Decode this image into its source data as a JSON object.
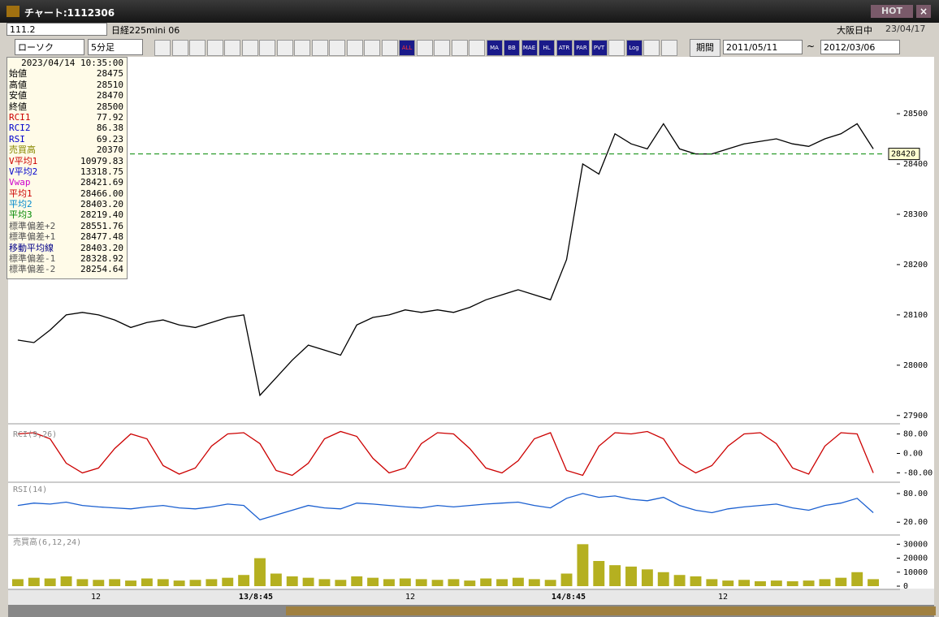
{
  "window": {
    "title": "チャート:1112306",
    "hot": "HOT"
  },
  "toolbar": {
    "symbol": "111.2",
    "instrument": "日経225mini 06",
    "session": "大阪日中",
    "date": "23/04/17",
    "chart_type": "ローソク",
    "interval": "5分足",
    "buttons": [
      "ALL",
      "MA",
      "BB",
      "MAE",
      "HL",
      "ATR",
      "PAR",
      "PVT",
      "Log"
    ],
    "period": "期間",
    "from": "2011/05/11",
    "sep": "~",
    "to": "2012/03/06"
  },
  "info": {
    "time": "2023/04/14 10:35:00",
    "rows": [
      [
        "始値",
        "28475"
      ],
      [
        "高値",
        "28510"
      ],
      [
        "安値",
        "28470"
      ],
      [
        "終値",
        "28500"
      ],
      [
        "RCI1",
        "77.92"
      ],
      [
        "RCI2",
        "86.38"
      ],
      [
        "RSI",
        "69.23"
      ],
      [
        "売買高",
        "20370"
      ],
      [
        "V平均1",
        "10979.83"
      ],
      [
        "V平均2",
        "13318.75"
      ],
      [
        "Vwap",
        "28421.69"
      ],
      [
        "平均1",
        "28466.00"
      ],
      [
        "平均2",
        "28403.20"
      ],
      [
        "平均3",
        "28219.40"
      ],
      [
        "標準偏差+2",
        "28551.76"
      ],
      [
        "標準偏差+1",
        "28477.48"
      ],
      [
        "移動平均線",
        "28403.20"
      ],
      [
        "標準偏差-1",
        "28328.92"
      ],
      [
        "標準偏差-2",
        "28254.64"
      ]
    ]
  },
  "chart_data": [
    {
      "type": "line",
      "name": "price",
      "color": "#000000",
      "ylim": [
        27890,
        28605
      ],
      "yticks": [
        27900,
        28000,
        28100,
        28200,
        28300,
        28400,
        28500
      ],
      "current_label": "28420",
      "current": 28420,
      "values": [
        28050,
        28045,
        28070,
        28100,
        28105,
        28100,
        28090,
        28075,
        28085,
        28090,
        28080,
        28075,
        28085,
        28095,
        28100,
        27940,
        27975,
        28010,
        28040,
        28030,
        28020,
        28080,
        28095,
        28100,
        28110,
        28105,
        28110,
        28105,
        28115,
        28130,
        28140,
        28150,
        28140,
        28130,
        28210,
        28400,
        28380,
        28460,
        28440,
        28430,
        28480,
        28430,
        28420,
        28420,
        28430,
        28440,
        28445,
        28450,
        28440,
        28435,
        28450,
        28460,
        28480,
        28430
      ],
      "xlabels": [
        "12",
        "13/8:45",
        "12",
        "14/8:45",
        "12"
      ]
    },
    {
      "type": "line",
      "name": "RCI(9,26)",
      "color": "#cc0000",
      "ylim": [
        -105,
        105
      ],
      "yticks": [
        {
          "value": 80,
          "label": "80.00"
        },
        {
          "value": 0,
          "label": "0.00"
        },
        {
          "value": -80,
          "label": "-80.00"
        }
      ],
      "values": [
        80,
        85,
        60,
        -40,
        -80,
        -60,
        20,
        80,
        60,
        -50,
        -85,
        -60,
        30,
        80,
        85,
        40,
        -70,
        -90,
        -40,
        60,
        90,
        70,
        -20,
        -80,
        -60,
        40,
        85,
        80,
        20,
        -60,
        -80,
        -30,
        60,
        85,
        -70,
        -90,
        30,
        85,
        80,
        90,
        60,
        -40,
        -80,
        -50,
        30,
        80,
        85,
        40,
        -60,
        -85,
        30,
        85,
        80,
        -80
      ]
    },
    {
      "type": "line",
      "name": "RSI(14)",
      "color": "#1a5fd0",
      "ylim": [
        0,
        102
      ],
      "yticks": [
        {
          "value": 80,
          "label": "80.00"
        },
        {
          "value": 20,
          "label": "20.00"
        }
      ],
      "values": [
        55,
        60,
        58,
        62,
        55,
        52,
        50,
        48,
        52,
        55,
        50,
        48,
        52,
        58,
        55,
        25,
        35,
        45,
        55,
        50,
        48,
        60,
        58,
        55,
        52,
        50,
        55,
        52,
        55,
        58,
        60,
        62,
        55,
        50,
        70,
        80,
        72,
        75,
        68,
        65,
        72,
        55,
        45,
        40,
        48,
        52,
        55,
        58,
        50,
        45,
        55,
        60,
        70,
        40
      ]
    },
    {
      "type": "bar",
      "name": "売買高(6,12,24)",
      "color": "#b5b020",
      "ylim": [
        0,
        36000
      ],
      "yticks": [
        30000,
        20000,
        10000,
        0
      ],
      "values": [
        5000,
        6000,
        5500,
        7000,
        5000,
        4500,
        5000,
        4000,
        5500,
        5000,
        4000,
        4500,
        5000,
        6000,
        8000,
        20000,
        9000,
        7000,
        6000,
        5000,
        4500,
        7000,
        6000,
        5000,
        5500,
        5000,
        4500,
        5000,
        4000,
        5500,
        5000,
        6000,
        5000,
        4500,
        9000,
        30000,
        18000,
        15000,
        14000,
        12000,
        10000,
        8000,
        7000,
        5000,
        4000,
        4500,
        3500,
        4000,
        3500,
        4000,
        5000,
        6000,
        10000,
        5000
      ]
    }
  ]
}
